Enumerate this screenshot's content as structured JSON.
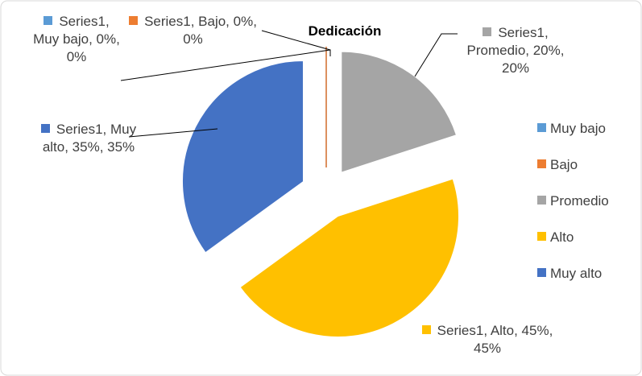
{
  "chart_data": {
    "type": "pie",
    "title": "Dedicación",
    "categories": [
      "Muy bajo",
      "Bajo",
      "Promedio",
      "Alto",
      "Muy alto"
    ],
    "series": [
      {
        "name": "Series1",
        "values": [
          0,
          0,
          20,
          45,
          35
        ],
        "value_labels": [
          "Series1, Muy bajo, 0%, 0%",
          "Series1, Bajo, 0%, 0%",
          "Series1, Promedio, 20%, 20%",
          "Series1, Alto, 45%, 45%",
          "Series1, Muy alto, 35%, 35%"
        ]
      }
    ],
    "colors": [
      "#5b9bd5",
      "#ed7d31",
      "#a5a5a5",
      "#ffc000",
      "#4472c4"
    ],
    "legend": "right"
  }
}
